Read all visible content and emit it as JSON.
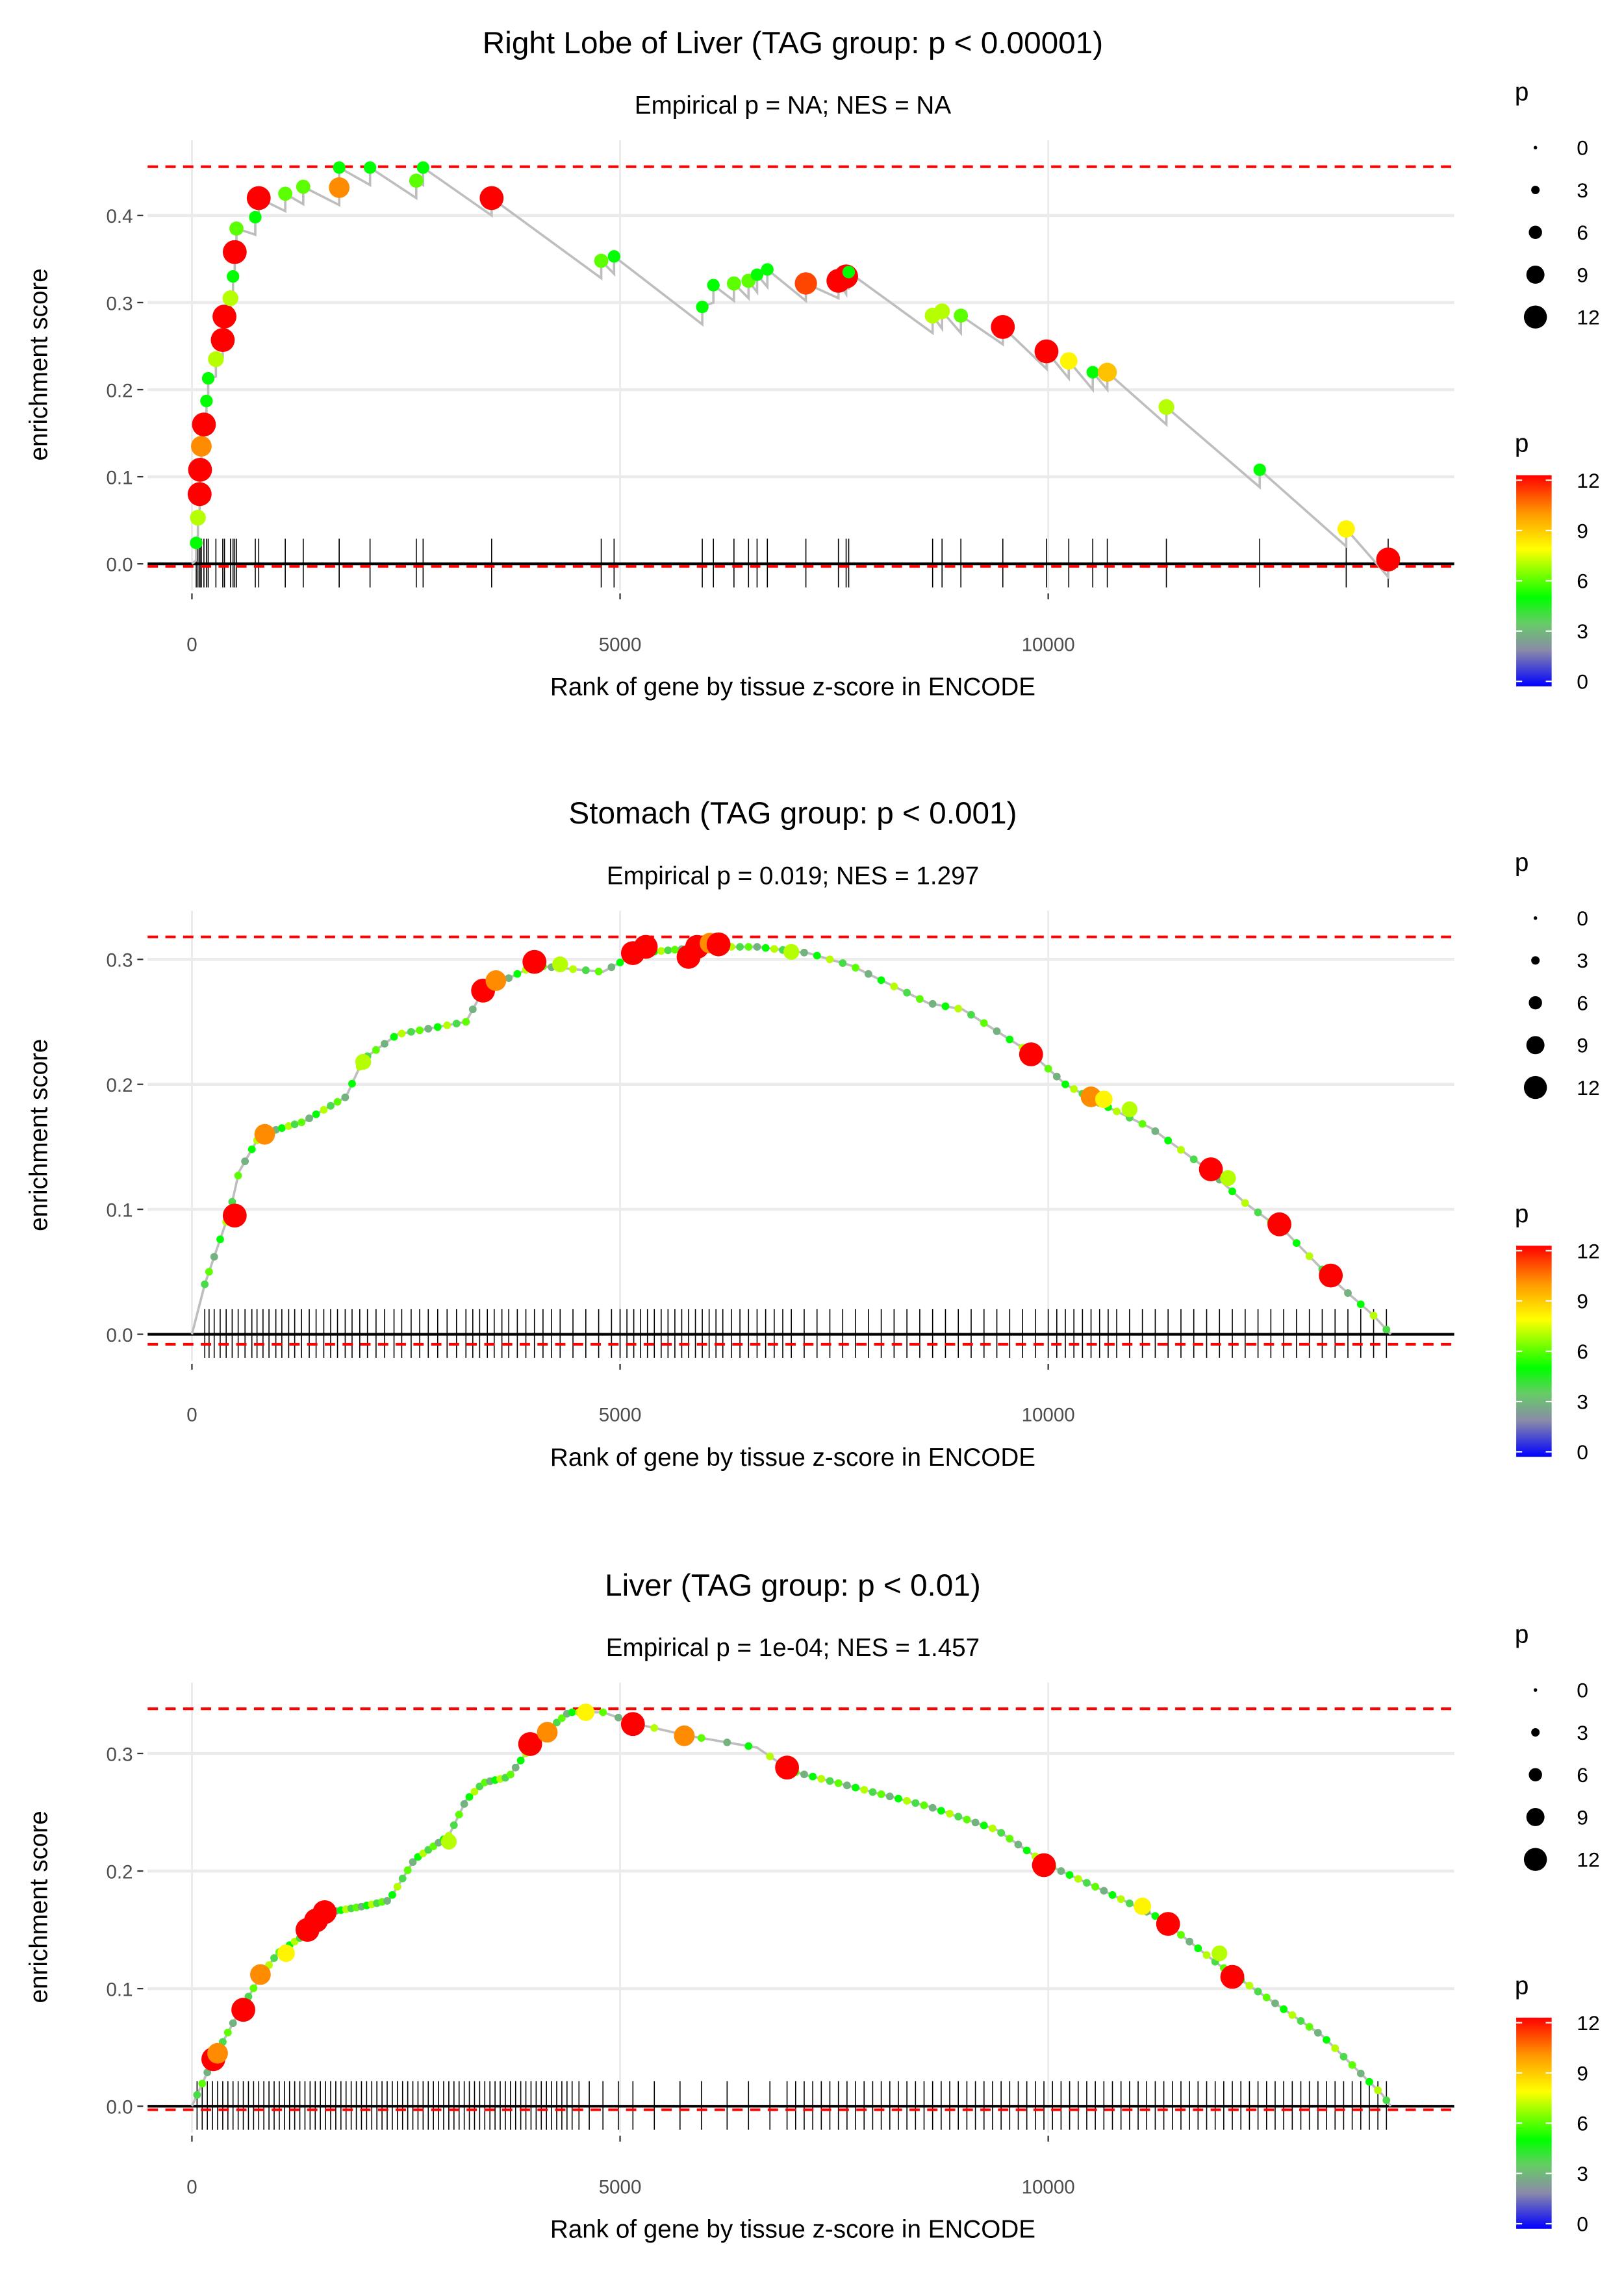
{
  "chart_data": [
    {
      "type": "scatter",
      "title": "Right Lobe of Liver (TAG group: p < 0.00001)",
      "subtitle": "Empirical p = NA; NES = NA",
      "xlabel": "Rank of gene by tissue z-score in ENCODE",
      "ylabel": "enrichment score",
      "xticks": [
        "0",
        "5000",
        "10000"
      ],
      "yticks": [
        "0.0",
        "0.1",
        "0.2",
        "0.3",
        "0.4"
      ],
      "ytick_values": [
        0,
        0.1,
        0.2,
        0.3,
        0.4
      ],
      "max_es": 0.456,
      "min_es": -0.003,
      "points": [
        [
          50,
          0.024,
          5
        ],
        [
          70,
          0.053,
          7
        ],
        [
          90,
          0.08,
          12
        ],
        [
          95,
          0.108,
          12
        ],
        [
          110,
          0.135,
          10
        ],
        [
          140,
          0.16,
          12
        ],
        [
          170,
          0.187,
          5
        ],
        [
          190,
          0.213,
          5
        ],
        [
          280,
          0.235,
          7
        ],
        [
          360,
          0.257,
          12
        ],
        [
          380,
          0.284,
          12
        ],
        [
          450,
          0.305,
          7
        ],
        [
          480,
          0.33,
          5
        ],
        [
          500,
          0.358,
          12
        ],
        [
          520,
          0.385,
          6
        ],
        [
          740,
          0.398,
          5
        ],
        [
          780,
          0.42,
          12
        ],
        [
          1090,
          0.425,
          6
        ],
        [
          1300,
          0.433,
          6
        ],
        [
          1720,
          0.432,
          10
        ],
        [
          1720,
          0.455,
          5
        ],
        [
          2080,
          0.455,
          5
        ],
        [
          2620,
          0.44,
          6
        ],
        [
          2700,
          0.455,
          5
        ],
        [
          3500,
          0.42,
          12
        ],
        [
          4780,
          0.348,
          6
        ],
        [
          4930,
          0.353,
          5
        ],
        [
          5960,
          0.295,
          5
        ],
        [
          6090,
          0.32,
          5
        ],
        [
          6330,
          0.322,
          6
        ],
        [
          6500,
          0.325,
          6
        ],
        [
          6600,
          0.332,
          5
        ],
        [
          6720,
          0.338,
          5
        ],
        [
          7170,
          0.322,
          11
        ],
        [
          7550,
          0.325,
          12
        ],
        [
          7640,
          0.33,
          12
        ],
        [
          7670,
          0.335,
          5
        ],
        [
          8650,
          0.285,
          7
        ],
        [
          8760,
          0.29,
          7
        ],
        [
          8980,
          0.285,
          6
        ],
        [
          9470,
          0.272,
          12
        ],
        [
          9980,
          0.244,
          12
        ],
        [
          10240,
          0.233,
          8
        ],
        [
          10520,
          0.22,
          5
        ],
        [
          10690,
          0.22,
          9
        ],
        [
          11380,
          0.18,
          7
        ],
        [
          12470,
          0.108,
          5
        ],
        [
          13480,
          0.04,
          8
        ],
        [
          13970,
          0.005,
          12
        ]
      ],
      "hits": [],
      "size_legend": {
        "title": "p",
        "labels": [
          "0",
          "3",
          "6",
          "9",
          "12"
        ]
      },
      "color_legend": {
        "title": "p",
        "labels": [
          "12",
          "9",
          "6",
          "3",
          "0"
        ]
      }
    },
    {
      "type": "scatter",
      "title": "Stomach (TAG group: p < 0.001)",
      "subtitle": "Empirical p = 0.019; NES = 1.297",
      "xlabel": "Rank of gene by tissue z-score in ENCODE",
      "ylabel": "enrichment score",
      "xticks": [
        "0",
        "5000",
        "10000"
      ],
      "yticks": [
        "0.0",
        "0.1",
        "0.2",
        "0.3"
      ],
      "ytick_values": [
        0,
        0.1,
        0.2,
        0.3
      ],
      "max_es": 0.318,
      "min_es": -0.008,
      "curve": [
        [
          0,
          0
        ],
        [
          150,
          0.04
        ],
        [
          300,
          0.07
        ],
        [
          450,
          0.1
        ],
        [
          550,
          0.13
        ],
        [
          800,
          0.16
        ],
        [
          1300,
          0.17
        ],
        [
          1800,
          0.19
        ],
        [
          2000,
          0.22
        ],
        [
          2400,
          0.24
        ],
        [
          2800,
          0.245
        ],
        [
          3200,
          0.25
        ],
        [
          3400,
          0.275
        ],
        [
          4000,
          0.295
        ],
        [
          4800,
          0.29
        ],
        [
          5200,
          0.305
        ],
        [
          6000,
          0.31
        ],
        [
          6600,
          0.31
        ],
        [
          7200,
          0.305
        ],
        [
          7700,
          0.295
        ],
        [
          8600,
          0.265
        ],
        [
          9000,
          0.26
        ],
        [
          9800,
          0.225
        ],
        [
          10200,
          0.2
        ],
        [
          10600,
          0.185
        ],
        [
          11200,
          0.165
        ],
        [
          11900,
          0.13
        ],
        [
          12300,
          0.105
        ],
        [
          12800,
          0.08
        ],
        [
          13300,
          0.045
        ],
        [
          13800,
          0.015
        ],
        [
          14000,
          0
        ]
      ],
      "points": [
        [
          500,
          0.095,
          12
        ],
        [
          850,
          0.16,
          10
        ],
        [
          2000,
          0.218,
          7
        ],
        [
          3400,
          0.275,
          12
        ],
        [
          3550,
          0.283,
          10
        ],
        [
          4000,
          0.298,
          12
        ],
        [
          4300,
          0.296,
          7
        ],
        [
          5150,
          0.305,
          12
        ],
        [
          5300,
          0.31,
          12
        ],
        [
          5800,
          0.302,
          12
        ],
        [
          5900,
          0.31,
          12
        ],
        [
          6050,
          0.313,
          10
        ],
        [
          6150,
          0.312,
          12
        ],
        [
          7000,
          0.306,
          7
        ],
        [
          9800,
          0.224,
          12
        ],
        [
          10500,
          0.19,
          10
        ],
        [
          10650,
          0.188,
          8
        ],
        [
          10950,
          0.18,
          7
        ],
        [
          11900,
          0.132,
          12
        ],
        [
          12100,
          0.125,
          7
        ],
        [
          12700,
          0.088,
          12
        ],
        [
          13300,
          0.047,
          12
        ]
      ],
      "hits": [
        150,
        200,
        260,
        330,
        400,
        470,
        540,
        620,
        700,
        760,
        830,
        900,
        980,
        1050,
        1130,
        1200,
        1280,
        1370,
        1450,
        1540,
        1620,
        1700,
        1790,
        1870,
        1960,
        2050,
        2150,
        2250,
        2360,
        2450,
        2560,
        2660,
        2760,
        2870,
        2980,
        3090,
        3200,
        3280,
        3360,
        3450,
        3530,
        3620,
        3700,
        3800,
        3900,
        4000,
        4100,
        4200,
        4300,
        4450,
        4600,
        4750,
        4900,
        5000,
        5080,
        5160,
        5240,
        5320,
        5400,
        5480,
        5560,
        5640,
        5720,
        5800,
        5880,
        5960,
        6040,
        6120,
        6200,
        6300,
        6400,
        6500,
        6600,
        6700,
        6800,
        6900,
        7000,
        7150,
        7300,
        7450,
        7600,
        7750,
        7900,
        8050,
        8200,
        8350,
        8500,
        8650,
        8800,
        8950,
        9100,
        9250,
        9400,
        9550,
        9700,
        9850,
        10000,
        10100,
        10200,
        10300,
        10400,
        10500,
        10600,
        10700,
        10800,
        10950,
        11100,
        11250,
        11400,
        11550,
        11700,
        11850,
        12000,
        12150,
        12300,
        12450,
        12600,
        12750,
        12900,
        13050,
        13200,
        13350,
        13500,
        13650,
        13800,
        13950
      ],
      "size_legend": {
        "title": "p",
        "labels": [
          "0",
          "3",
          "6",
          "9",
          "12"
        ]
      },
      "color_legend": {
        "title": "p",
        "labels": [
          "12",
          "9",
          "6",
          "3",
          "0"
        ]
      }
    },
    {
      "type": "scatter",
      "title": "Liver (TAG group: p < 0.01)",
      "subtitle": "Empirical p = 1e-04; NES = 1.457",
      "xlabel": "Rank of gene by tissue z-score in ENCODE",
      "ylabel": "enrichment score",
      "xticks": [
        "0",
        "5000",
        "10000"
      ],
      "yticks": [
        "0.0",
        "0.1",
        "0.2",
        "0.3"
      ],
      "ytick_values": [
        0,
        0.1,
        0.2,
        0.3
      ],
      "max_es": 0.338,
      "min_es": -0.003,
      "curve": [
        [
          0,
          0
        ],
        [
          250,
          0.04
        ],
        [
          550,
          0.08
        ],
        [
          800,
          0.11
        ],
        [
          1000,
          0.13
        ],
        [
          1400,
          0.15
        ],
        [
          1600,
          0.165
        ],
        [
          2000,
          0.17
        ],
        [
          2300,
          0.175
        ],
        [
          2600,
          0.21
        ],
        [
          3000,
          0.23
        ],
        [
          3200,
          0.26
        ],
        [
          3400,
          0.275
        ],
        [
          3700,
          0.28
        ],
        [
          4000,
          0.31
        ],
        [
          4400,
          0.335
        ],
        [
          4800,
          0.335
        ],
        [
          5200,
          0.325
        ],
        [
          5800,
          0.315
        ],
        [
          6600,
          0.305
        ],
        [
          7000,
          0.285
        ],
        [
          7800,
          0.27
        ],
        [
          8600,
          0.255
        ],
        [
          9400,
          0.235
        ],
        [
          10000,
          0.205
        ],
        [
          10600,
          0.185
        ],
        [
          11300,
          0.16
        ],
        [
          12000,
          0.12
        ],
        [
          12600,
          0.09
        ],
        [
          13200,
          0.06
        ],
        [
          13900,
          0.01
        ],
        [
          14000,
          0
        ]
      ],
      "points": [
        [
          250,
          0.04,
          12
        ],
        [
          300,
          0.045,
          10
        ],
        [
          600,
          0.082,
          12
        ],
        [
          800,
          0.112,
          10
        ],
        [
          1100,
          0.13,
          8
        ],
        [
          1350,
          0.15,
          12
        ],
        [
          1450,
          0.158,
          12
        ],
        [
          1550,
          0.165,
          12
        ],
        [
          3000,
          0.225,
          7
        ],
        [
          3950,
          0.308,
          12
        ],
        [
          4150,
          0.318,
          10
        ],
        [
          4600,
          0.335,
          8
        ],
        [
          5150,
          0.325,
          12
        ],
        [
          5750,
          0.315,
          10
        ],
        [
          6950,
          0.288,
          12
        ],
        [
          9950,
          0.205,
          12
        ],
        [
          11100,
          0.17,
          8
        ],
        [
          11400,
          0.155,
          12
        ],
        [
          12000,
          0.13,
          7
        ],
        [
          12150,
          0.11,
          12
        ]
      ],
      "hits": [
        60,
        120,
        180,
        240,
        300,
        360,
        420,
        480,
        540,
        600,
        660,
        720,
        780,
        840,
        900,
        960,
        1020,
        1080,
        1140,
        1200,
        1260,
        1320,
        1380,
        1440,
        1500,
        1560,
        1620,
        1680,
        1740,
        1800,
        1860,
        1920,
        1980,
        2040,
        2100,
        2160,
        2220,
        2280,
        2340,
        2400,
        2460,
        2520,
        2580,
        2640,
        2700,
        2760,
        2820,
        2880,
        2940,
        3000,
        3060,
        3120,
        3180,
        3240,
        3300,
        3360,
        3420,
        3480,
        3540,
        3600,
        3660,
        3720,
        3780,
        3840,
        3900,
        3960,
        4020,
        4080,
        4140,
        4200,
        4260,
        4320,
        4380,
        4440,
        4520,
        4640,
        4800,
        4980,
        5150,
        5400,
        5700,
        5950,
        6250,
        6500,
        6750,
        6950,
        7050,
        7150,
        7250,
        7350,
        7450,
        7550,
        7650,
        7750,
        7850,
        7950,
        8050,
        8150,
        8250,
        8350,
        8450,
        8550,
        8650,
        8750,
        8850,
        8950,
        9050,
        9150,
        9250,
        9350,
        9450,
        9550,
        9650,
        9750,
        9850,
        9950,
        10050,
        10150,
        10250,
        10350,
        10450,
        10550,
        10650,
        10750,
        10850,
        10950,
        11050,
        11150,
        11250,
        11350,
        11450,
        11550,
        11650,
        11750,
        11850,
        11950,
        12050,
        12150,
        12250,
        12350,
        12450,
        12550,
        12650,
        12750,
        12850,
        12950,
        13050,
        13150,
        13250,
        13350,
        13450,
        13550,
        13650,
        13750,
        13850,
        13950
      ],
      "size_legend": {
        "title": "p",
        "labels": [
          "0",
          "3",
          "6",
          "9",
          "12"
        ]
      },
      "color_legend": {
        "title": "p",
        "labels": [
          "12",
          "9",
          "6",
          "3",
          "0"
        ]
      }
    }
  ],
  "colors": {
    "max_line": "#ff0000",
    "curve": "#bebebe",
    "grid": "#ebebeb",
    "zero_line": "#000000"
  }
}
